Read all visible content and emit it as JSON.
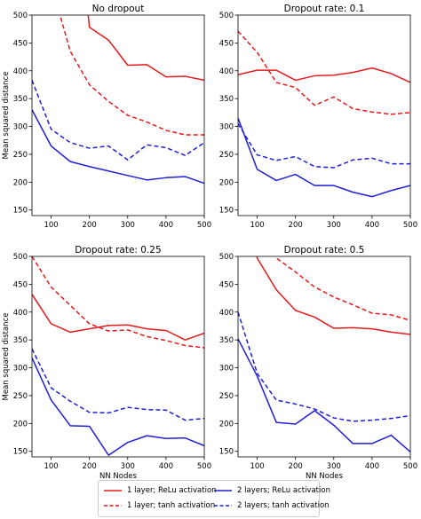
{
  "chart_data": [
    {
      "type": "line",
      "title": "No dropout",
      "xlabel": "",
      "ylabel": "Mean squared distance",
      "xlim": [
        50,
        500
      ],
      "ylim": [
        140,
        500
      ],
      "xticks": [
        100,
        200,
        300,
        400,
        500
      ],
      "yticks": [
        150,
        200,
        250,
        300,
        350,
        400,
        450,
        500
      ],
      "x": [
        50,
        100,
        150,
        200,
        250,
        300,
        350,
        400,
        450,
        500
      ],
      "series": [
        {
          "id": "relu1",
          "values": [
            null,
            null,
            null,
            478,
            455,
            410,
            411,
            389,
            390,
            383
          ]
        },
        {
          "id": "tanh1",
          "values": [
            null,
            null,
            435,
            375,
            345,
            320,
            308,
            293,
            285,
            285
          ]
        },
        {
          "id": "relu2",
          "values": [
            330,
            265,
            237,
            228,
            220,
            212,
            204,
            208,
            210,
            198
          ]
        },
        {
          "id": "tanh2",
          "values": [
            383,
            295,
            271,
            261,
            265,
            240,
            267,
            262,
            248,
            271
          ]
        }
      ],
      "clipped_segments": [
        {
          "series": "relu1",
          "from": [
            194,
            520
          ],
          "to": [
            200,
            478
          ]
        },
        {
          "series": "tanh1",
          "from": [
            115,
            520
          ],
          "to": [
            150,
            435
          ]
        }
      ]
    },
    {
      "type": "line",
      "title": "Dropout rate: 0.1",
      "xlabel": "",
      "ylabel": "",
      "xlim": [
        50,
        500
      ],
      "ylim": [
        140,
        500
      ],
      "xticks": [
        100,
        200,
        300,
        400,
        500
      ],
      "yticks": [
        150,
        200,
        250,
        300,
        350,
        400,
        450,
        500
      ],
      "x": [
        50,
        100,
        150,
        200,
        250,
        300,
        350,
        400,
        450,
        500
      ],
      "series": [
        {
          "id": "relu1",
          "values": [
            393,
            401,
            401,
            383,
            391,
            392,
            397,
            405,
            395,
            379
          ]
        },
        {
          "id": "tanh1",
          "values": [
            471,
            433,
            379,
            370,
            338,
            353,
            332,
            326,
            322,
            325
          ]
        },
        {
          "id": "relu2",
          "values": [
            315,
            223,
            203,
            214,
            194,
            194,
            182,
            174,
            185,
            194
          ]
        },
        {
          "id": "tanh2",
          "values": [
            305,
            249,
            239,
            246,
            228,
            226,
            240,
            243,
            233,
            233
          ]
        }
      ]
    },
    {
      "type": "line",
      "title": "Dropout rate: 0.25",
      "xlabel": "NN Nodes",
      "ylabel": "Mean squared distance",
      "xlim": [
        50,
        500
      ],
      "ylim": [
        140,
        500
      ],
      "xticks": [
        100,
        200,
        300,
        400,
        500
      ],
      "yticks": [
        150,
        200,
        250,
        300,
        350,
        400,
        450,
        500
      ],
      "x": [
        50,
        100,
        150,
        200,
        250,
        300,
        350,
        400,
        450,
        500
      ],
      "series": [
        {
          "id": "relu1",
          "values": [
            432,
            379,
            364,
            370,
            376,
            377,
            370,
            367,
            350,
            362
          ]
        },
        {
          "id": "tanh1",
          "values": [
            500,
            445,
            412,
            379,
            366,
            368,
            356,
            349,
            340,
            336
          ]
        },
        {
          "id": "relu2",
          "values": [
            318,
            242,
            196,
            195,
            143,
            166,
            178,
            173,
            174,
            160
          ]
        },
        {
          "id": "tanh2",
          "values": [
            334,
            264,
            240,
            220,
            219,
            229,
            225,
            224,
            206,
            209
          ]
        }
      ]
    },
    {
      "type": "line",
      "title": "Dropout rate: 0.5",
      "xlabel": "NN Nodes",
      "ylabel": "",
      "xlim": [
        50,
        500
      ],
      "ylim": [
        140,
        500
      ],
      "xticks": [
        100,
        200,
        300,
        400,
        500
      ],
      "yticks": [
        150,
        200,
        250,
        300,
        350,
        400,
        450,
        500
      ],
      "x": [
        50,
        100,
        150,
        200,
        250,
        300,
        350,
        400,
        450,
        500
      ],
      "series": [
        {
          "id": "relu1",
          "values": [
            null,
            497,
            440,
            403,
            391,
            371,
            372,
            370,
            364,
            360
          ]
        },
        {
          "id": "tanh1",
          "values": [
            null,
            null,
            497,
            472,
            445,
            427,
            413,
            398,
            395,
            385
          ]
        },
        {
          "id": "relu2",
          "values": [
            352,
            285,
            202,
            199,
            223,
            197,
            164,
            164,
            179,
            149
          ]
        },
        {
          "id": "tanh2",
          "values": [
            400,
            290,
            242,
            235,
            226,
            210,
            204,
            206,
            209,
            214
          ]
        }
      ],
      "clipped_segments": [
        {
          "series": "relu1",
          "from": [
            95,
            520
          ],
          "to": [
            100,
            497
          ]
        },
        {
          "series": "tanh1",
          "from": [
            140,
            520
          ],
          "to": [
            150,
            497
          ]
        }
      ]
    }
  ],
  "legend": {
    "items": [
      {
        "id": "relu1",
        "label": "1 layer; ReLu activation",
        "color": "#e41a1c",
        "dash": "solid"
      },
      {
        "id": "tanh1",
        "label": "1 layer; tanh activation",
        "color": "#e41a1c",
        "dash": "dashed"
      },
      {
        "id": "relu2",
        "label": "2 layers; ReLu activation",
        "color": "#1f1fd6",
        "dash": "solid"
      },
      {
        "id": "tanh2",
        "label": "2 layers; tanh activation",
        "color": "#1f1fd6",
        "dash": "dashed"
      }
    ]
  }
}
